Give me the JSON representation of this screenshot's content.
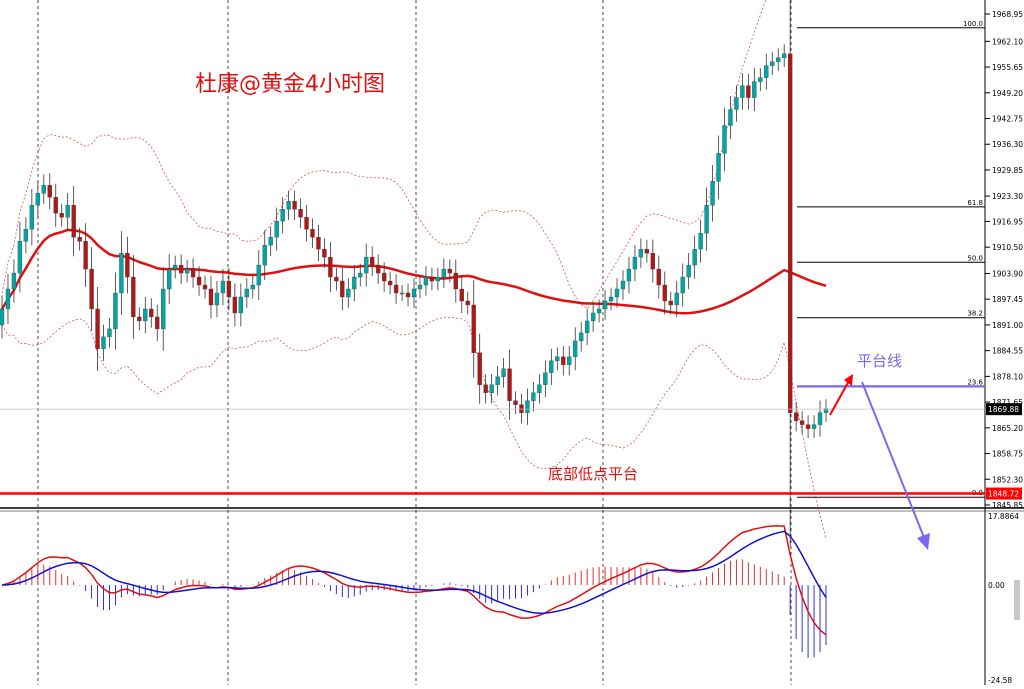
{
  "chart_data": [
    {
      "type": "candlestick",
      "title": "杜康@黄金4小时图",
      "y_ticks": [
        1968.95,
        1962.1,
        1955.65,
        1949.2,
        1942.75,
        1936.3,
        1929.85,
        1923.3,
        1916.95,
        1910.5,
        1903.9,
        1897.45,
        1891.0,
        1884.55,
        1878.1,
        1871.65,
        1865.2,
        1858.75,
        1852.3,
        1845.85
      ],
      "ylim": [
        1845.85,
        1968.95
      ],
      "current_price": "1869.88",
      "support_line_price": "1848.72",
      "fib_levels": [
        {
          "label": "100.0",
          "price": 1965.5
        },
        {
          "label": "61.8",
          "price": 1920.6
        },
        {
          "label": "50.0",
          "price": 1906.7
        },
        {
          "label": "38.2",
          "price": 1892.8
        },
        {
          "label": "23.6",
          "price": 1875.6
        },
        {
          "label": "0.0",
          "price": 1847.8
        }
      ],
      "annotations": {
        "platform_line": "平台线",
        "bottom_platform": "底部低点平台"
      },
      "close_series": [
        1895,
        1900,
        1904,
        1912,
        1915,
        1921,
        1924,
        1926,
        1923,
        1919,
        1918,
        1921,
        1913,
        1912,
        1905,
        1895,
        1885,
        1888,
        1890,
        1899,
        1909,
        1903,
        1893,
        1892,
        1895,
        1893,
        1890,
        1900,
        1905,
        1906,
        1904,
        1905,
        1903,
        1901,
        1900,
        1896,
        1899,
        1902,
        1898,
        1894,
        1898,
        1900,
        1901,
        1906,
        1911,
        1913,
        1917,
        1920,
        1922,
        1920,
        1918,
        1915,
        1913,
        1910,
        1908,
        1903,
        1902,
        1898,
        1900,
        1903,
        1904,
        1908,
        1906,
        1904,
        1902,
        1901,
        1899,
        1899,
        1898,
        1900,
        1901,
        1903,
        1902,
        1903,
        1905,
        1904,
        1900,
        1897,
        1896,
        1884,
        1876,
        1874,
        1876,
        1878,
        1880,
        1872,
        1871,
        1869,
        1872,
        1874,
        1876,
        1879,
        1882,
        1883,
        1881,
        1883,
        1887,
        1889,
        1892,
        1894,
        1895,
        1897,
        1898,
        1900,
        1902,
        1905,
        1908,
        1910,
        1909,
        1905,
        1901,
        1897,
        1896,
        1899,
        1903,
        1906,
        1910,
        1914,
        1921,
        1927,
        1934,
        1941,
        1945,
        1948,
        1951,
        1948,
        1952,
        1953,
        1956,
        1957,
        1958,
        1959,
        1869,
        1867,
        1866,
        1865,
        1866,
        1869,
        1870
      ],
      "macd_ylim": [
        -24.58,
        17.8864
      ],
      "macd_ticks": [
        "17.8864",
        "0.00",
        "-24.58"
      ]
    }
  ],
  "colors": {
    "bull": "#00a6a6",
    "bear": "#b01818",
    "ma": "#e01010",
    "band": "#e05050",
    "fib": "#000000",
    "platform": "#7b68ee",
    "signal": "#1010d0"
  }
}
